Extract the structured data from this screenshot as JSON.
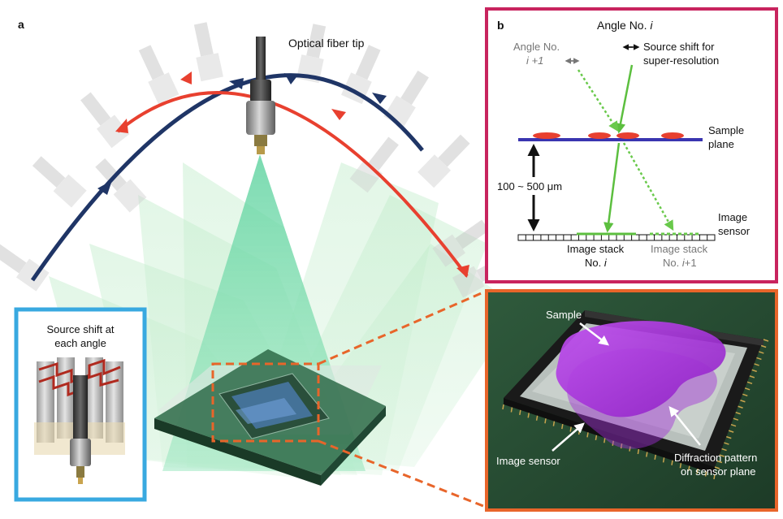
{
  "panel_a": {
    "label": "a",
    "fiber_tip": "Optical fiber tip",
    "inset": {
      "line1": "Source shift at",
      "line2": "each angle"
    }
  },
  "panel_b": {
    "label": "b",
    "angle_i_prefix": "Angle No. ",
    "angle_i_var": "i",
    "angle_next_line1": "Angle No.",
    "angle_next_line2": "i +1",
    "shift_line1": "Source shift for",
    "shift_line2": "super-resolution",
    "sample_plane_line1": "Sample",
    "sample_plane_line2": "plane",
    "distance": "100 ~ 500 μm",
    "image_sensor_line1": "Image",
    "image_sensor_line2": "sensor",
    "stack_i_line1": "Image stack",
    "stack_i_line2_prefix": "No. ",
    "stack_i_var": "i",
    "stack_next_line1": "Image stack",
    "stack_next_line2_prefix": "No. ",
    "stack_next_var": "i",
    "stack_next_suffix": "+1"
  },
  "panel_c": {
    "sample": "Sample",
    "image_sensor": "Image sensor",
    "diffraction_line1": "Diffraction pattern",
    "diffraction_line2": "on sensor plane"
  },
  "colors": {
    "red_arc": "#e8402f",
    "blue_arc": "#1f3566",
    "inset_border": "#39a9e0",
    "panel_b_border": "#c8245e",
    "panel_c_border": "#e8652a",
    "light_green": "#7fd9a8",
    "sample_purple": "#a12ed6"
  }
}
